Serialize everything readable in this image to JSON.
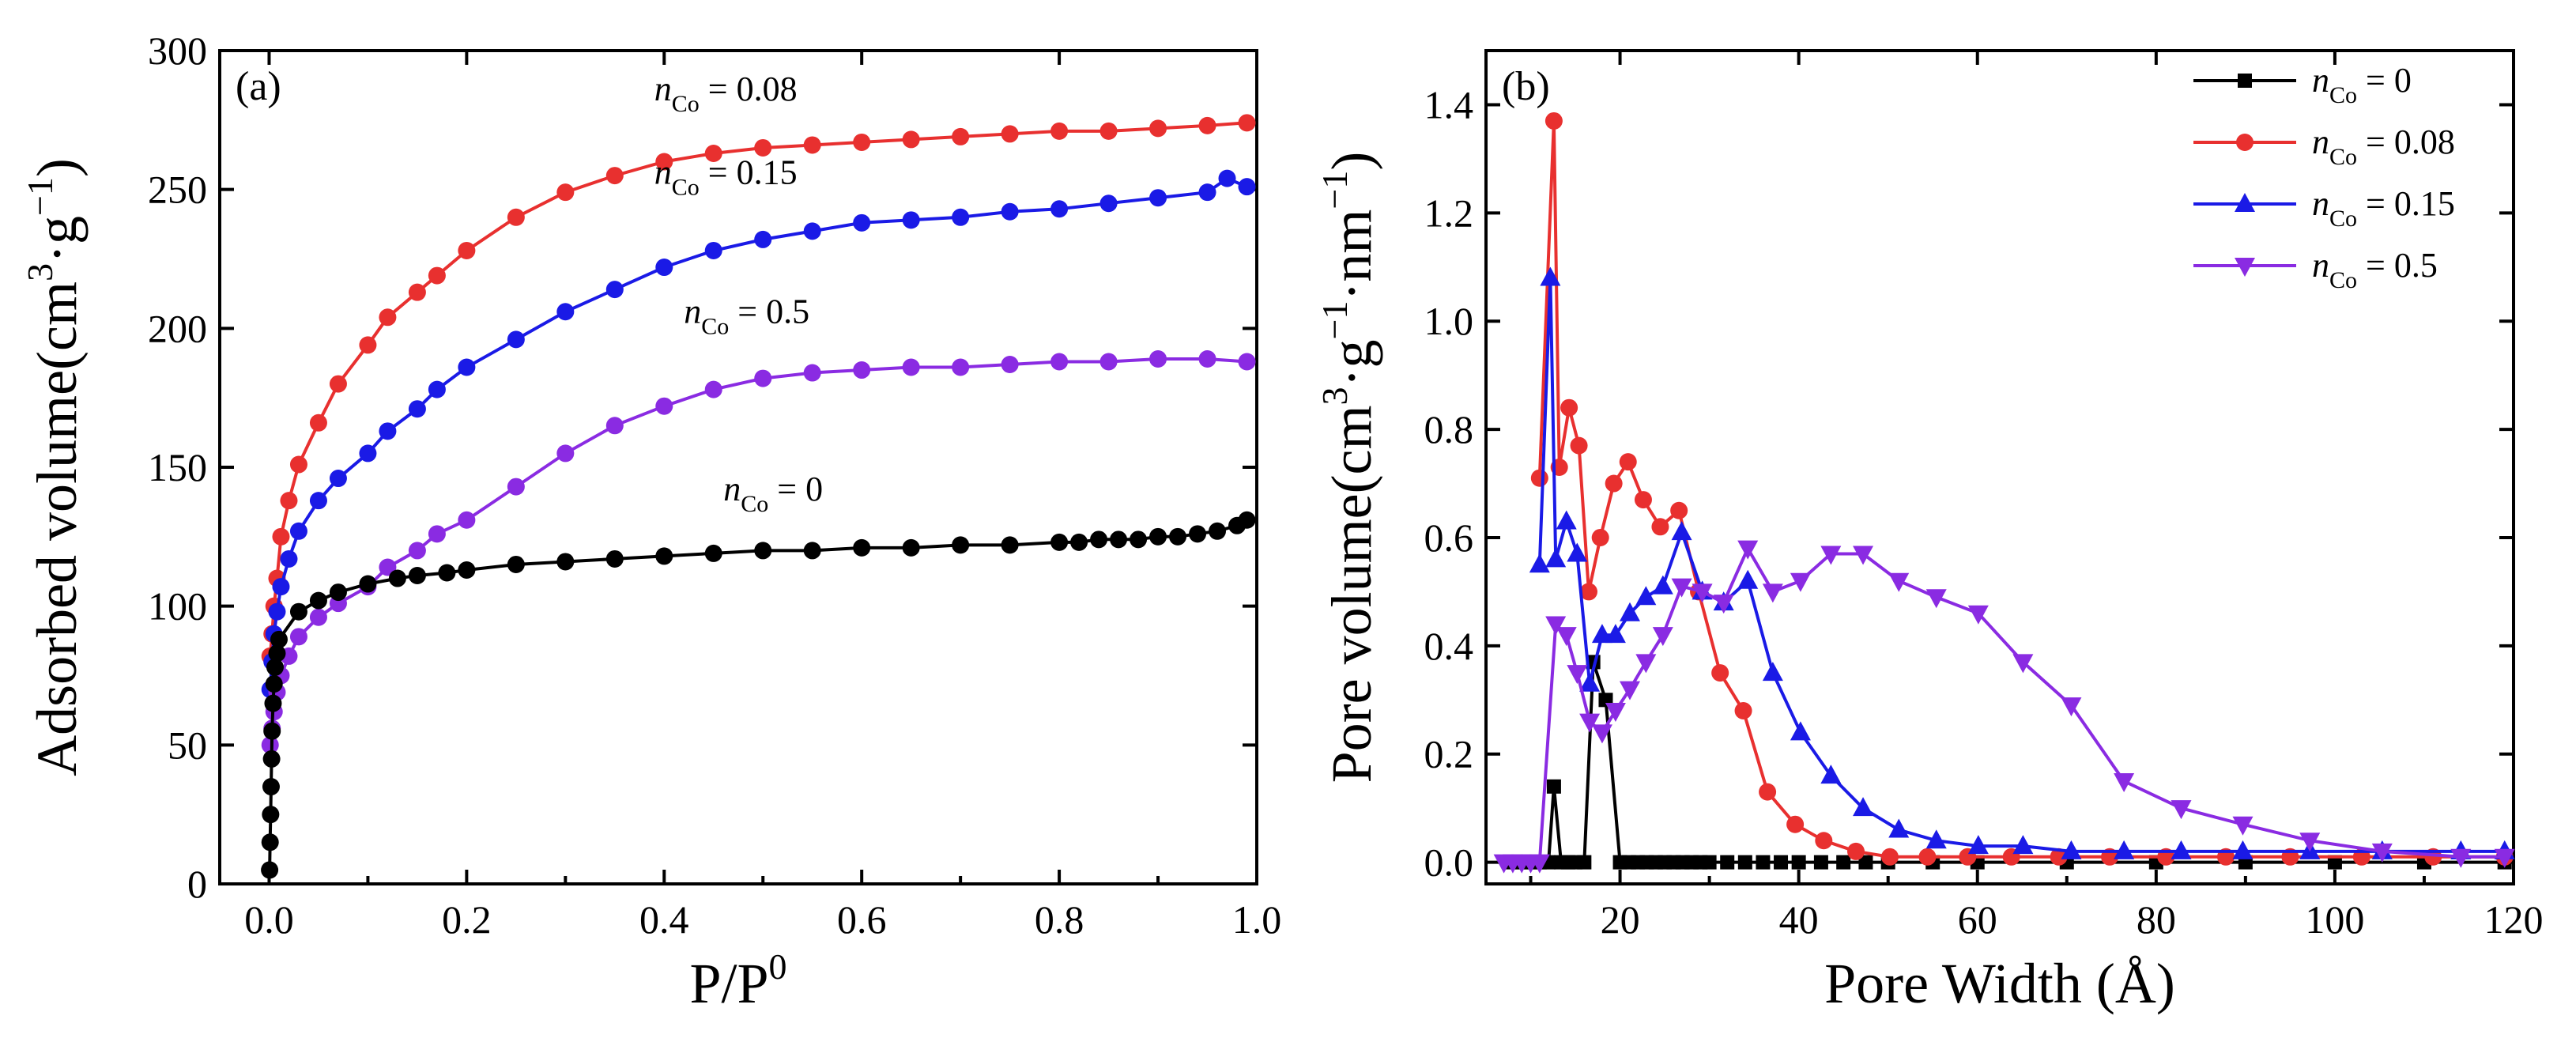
{
  "chart_data": [
    {
      "type": "line",
      "panel_label": "(a)",
      "xlabel": "P/P0",
      "ylabel": "Adsorbed volume(cm3·g−1)",
      "xlim": [
        -0.05,
        1.0
      ],
      "ylim": [
        0,
        300
      ],
      "xticks": [
        "0.0",
        "0.2",
        "0.4",
        "0.6",
        "0.8",
        "1.0"
      ],
      "yticks": [
        "0",
        "50",
        "100",
        "150",
        "200",
        "250",
        "300"
      ],
      "series": [
        {
          "name": "nCo = 0.08",
          "label_var": "n",
          "label_sub": "Co",
          "label_rest": " = 0.08",
          "label_x": 0.39,
          "label_y": 282,
          "color": "#e8302f",
          "marker": "circle",
          "x": [
            0.001,
            0.003,
            0.005,
            0.008,
            0.012,
            0.02,
            0.03,
            0.05,
            0.07,
            0.1,
            0.12,
            0.15,
            0.17,
            0.2,
            0.25,
            0.3,
            0.35,
            0.4,
            0.45,
            0.5,
            0.55,
            0.6,
            0.65,
            0.7,
            0.75,
            0.8,
            0.85,
            0.9,
            0.95,
            0.99
          ],
          "y": [
            82,
            90,
            100,
            110,
            125,
            138,
            151,
            166,
            180,
            194,
            204,
            213,
            219,
            228,
            240,
            249,
            255,
            260,
            263,
            265,
            266,
            267,
            268,
            269,
            270,
            271,
            271,
            272,
            273,
            274
          ]
        },
        {
          "name": "nCo = 0.15",
          "label_var": "n",
          "label_sub": "Co",
          "label_rest": " = 0.15",
          "label_x": 0.39,
          "label_y": 252,
          "color": "#1a1ae6",
          "marker": "circle",
          "x": [
            0.001,
            0.003,
            0.005,
            0.008,
            0.012,
            0.02,
            0.03,
            0.05,
            0.07,
            0.1,
            0.12,
            0.15,
            0.17,
            0.2,
            0.25,
            0.3,
            0.35,
            0.4,
            0.45,
            0.5,
            0.55,
            0.6,
            0.65,
            0.7,
            0.75,
            0.8,
            0.85,
            0.9,
            0.95,
            0.97,
            0.99
          ],
          "y": [
            70,
            80,
            90,
            98,
            107,
            117,
            127,
            138,
            146,
            155,
            163,
            171,
            178,
            186,
            196,
            206,
            214,
            222,
            228,
            232,
            235,
            238,
            239,
            240,
            242,
            243,
            245,
            247,
            249,
            254,
            251
          ]
        },
        {
          "name": "nCo = 0.5",
          "label_var": "n",
          "label_sub": "Co",
          "label_rest": " = 0.5",
          "label_x": 0.42,
          "label_y": 202,
          "color": "#8a2be2",
          "marker": "circle",
          "x": [
            0.001,
            0.003,
            0.005,
            0.008,
            0.012,
            0.02,
            0.03,
            0.05,
            0.07,
            0.1,
            0.12,
            0.15,
            0.17,
            0.2,
            0.25,
            0.3,
            0.35,
            0.4,
            0.45,
            0.5,
            0.55,
            0.6,
            0.65,
            0.7,
            0.75,
            0.8,
            0.85,
            0.9,
            0.95,
            0.99
          ],
          "y": [
            50,
            56,
            62,
            69,
            75,
            82,
            89,
            96,
            101,
            107,
            114,
            120,
            126,
            131,
            143,
            155,
            165,
            172,
            178,
            182,
            184,
            185,
            186,
            186,
            187,
            188,
            188,
            189,
            189,
            188
          ]
        },
        {
          "name": "nCo = 0",
          "label_var": "n",
          "label_sub": "Co",
          "label_rest": " = 0",
          "label_x": 0.46,
          "label_y": 138,
          "color": "#000000",
          "marker": "circle",
          "x": [
            0.0005,
            0.001,
            0.0015,
            0.002,
            0.0025,
            0.003,
            0.004,
            0.005,
            0.006,
            0.008,
            0.01,
            0.03,
            0.05,
            0.07,
            0.1,
            0.13,
            0.15,
            0.18,
            0.2,
            0.25,
            0.3,
            0.35,
            0.4,
            0.45,
            0.5,
            0.55,
            0.6,
            0.65,
            0.7,
            0.75,
            0.8,
            0.82,
            0.84,
            0.86,
            0.88,
            0.9,
            0.92,
            0.94,
            0.96,
            0.98,
            0.99
          ],
          "y": [
            5,
            15,
            25,
            35,
            45,
            55,
            65,
            72,
            78,
            83,
            88,
            98,
            102,
            105,
            108,
            110,
            111,
            112,
            113,
            115,
            116,
            117,
            118,
            119,
            120,
            120,
            121,
            121,
            122,
            122,
            123,
            123,
            124,
            124,
            124,
            125,
            125,
            126,
            127,
            129,
            131
          ]
        }
      ]
    },
    {
      "type": "line",
      "panel_label": "(b)",
      "xlabel": "Pore Width (Å)",
      "ylabel": "Pore volume(cm3·g−1·nm−1)",
      "xlim": [
        5,
        120
      ],
      "ylim": [
        -0.04,
        1.5
      ],
      "xticks": [
        "20",
        "40",
        "60",
        "80",
        "100",
        "120"
      ],
      "yticks": [
        "0.0",
        "0.2",
        "0.4",
        "0.6",
        "0.8",
        "1.0",
        "1.2",
        "1.4"
      ],
      "legend": "top-right",
      "series": [
        {
          "name": "nCo = 0",
          "label_var": "n",
          "label_sub": "Co",
          "label_rest": " = 0",
          "color": "#000000",
          "marker": "square",
          "x": [
            8,
            9,
            10,
            11,
            12,
            12.6,
            13.4,
            14.2,
            15,
            16,
            17,
            18.4,
            20,
            21,
            22,
            23,
            24,
            25,
            26,
            27,
            28,
            29,
            30,
            32,
            34,
            36,
            38,
            40,
            42.5,
            45,
            47.5,
            50,
            55,
            60,
            70,
            80,
            90,
            100,
            110,
            119
          ],
          "y": [
            0,
            0,
            0,
            0,
            0,
            0.14,
            0,
            0,
            0,
            0,
            0.37,
            0.3,
            0,
            0,
            0,
            0,
            0,
            0,
            0,
            0,
            0,
            0,
            0,
            0,
            0,
            0,
            0,
            0,
            0,
            0,
            0,
            0,
            0,
            0,
            0,
            0,
            0,
            0,
            0,
            0
          ]
        },
        {
          "name": "nCo = 0.08",
          "label_var": "n",
          "label_sub": "Co",
          "label_rest": " = 0.08",
          "color": "#e8302f",
          "marker": "circle",
          "x": [
            11,
            12.6,
            13.2,
            14.3,
            15.4,
            16.5,
            17.8,
            19.3,
            20.9,
            22.6,
            24.5,
            26.6,
            28.8,
            31.2,
            33.8,
            36.5,
            39.6,
            42.8,
            46.4,
            50.2,
            54.4,
            58.9,
            63.8,
            69.1,
            74.8,
            81.1,
            87.8,
            95,
            103,
            111,
            119
          ],
          "y": [
            0.71,
            1.37,
            0.73,
            0.84,
            0.77,
            0.5,
            0.6,
            0.7,
            0.74,
            0.67,
            0.62,
            0.65,
            0.5,
            0.35,
            0.28,
            0.13,
            0.07,
            0.04,
            0.02,
            0.01,
            0.01,
            0.01,
            0.01,
            0.01,
            0.01,
            0.01,
            0.01,
            0.01,
            0.01,
            0.01,
            0.01
          ]
        },
        {
          "name": "nCo = 0.15",
          "label_var": "n",
          "label_sub": "Co",
          "label_rest": " = 0.15",
          "color": "#1a1ae6",
          "marker": "triangle-up",
          "x": [
            11,
            12.2,
            12.8,
            14,
            15.2,
            16.6,
            18,
            19.5,
            21.1,
            22.9,
            24.8,
            26.9,
            29.2,
            31.6,
            34.3,
            37.1,
            40.2,
            43.6,
            47.2,
            51.2,
            55.4,
            60.1,
            65.1,
            70.5,
            76.4,
            82.8,
            89.7,
            97.2,
            105.3,
            114.1,
            119
          ],
          "y": [
            0.55,
            1.08,
            0.56,
            0.63,
            0.57,
            0.33,
            0.42,
            0.42,
            0.46,
            0.49,
            0.51,
            0.61,
            0.5,
            0.48,
            0.52,
            0.35,
            0.24,
            0.16,
            0.1,
            0.06,
            0.04,
            0.03,
            0.03,
            0.02,
            0.02,
            0.02,
            0.02,
            0.02,
            0.02,
            0.02,
            0.02
          ]
        },
        {
          "name": "nCo = 0.5",
          "label_var": "n",
          "label_sub": "Co",
          "label_rest": " = 0.5",
          "color": "#8a2be2",
          "marker": "triangle-down",
          "x": [
            7,
            8,
            9,
            10,
            11,
            12.8,
            14,
            15.2,
            16.6,
            18,
            19.5,
            21.1,
            22.9,
            24.8,
            26.9,
            29.2,
            31.6,
            34.3,
            37.1,
            40.2,
            43.6,
            47.2,
            51.2,
            55.4,
            60.1,
            65.1,
            70.5,
            76.4,
            82.8,
            89.7,
            97.2,
            105.3,
            114.1,
            119
          ],
          "y": [
            0,
            0,
            0,
            0,
            0,
            0.44,
            0.42,
            0.35,
            0.26,
            0.24,
            0.28,
            0.32,
            0.37,
            0.42,
            0.51,
            0.5,
            0.48,
            0.58,
            0.5,
            0.52,
            0.57,
            0.57,
            0.52,
            0.49,
            0.46,
            0.37,
            0.29,
            0.15,
            0.1,
            0.07,
            0.04,
            0.02,
            0.01,
            0.01
          ]
        }
      ]
    }
  ]
}
